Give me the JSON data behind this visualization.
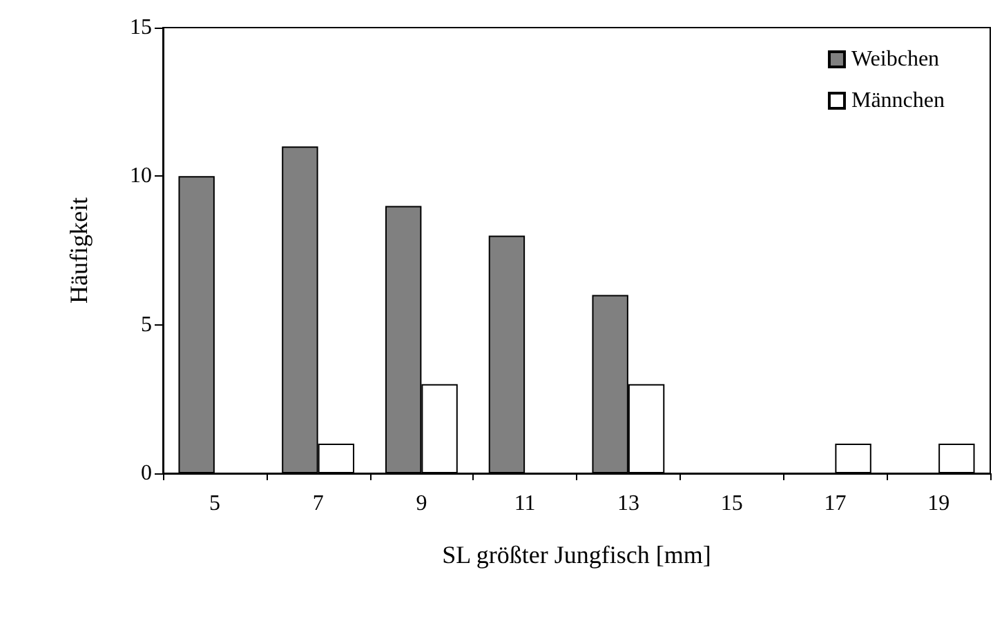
{
  "chart_data": {
    "type": "bar",
    "xlabel": "SL größter Jungfisch [mm]",
    "ylabel": "Häufigkeit",
    "categories": [
      "5",
      "7",
      "9",
      "11",
      "13",
      "15",
      "17",
      "19"
    ],
    "series": [
      {
        "name": "Weibchen",
        "color": "#808080",
        "values": [
          10,
          11,
          9,
          8,
          6,
          0,
          0,
          0
        ]
      },
      {
        "name": "Männchen",
        "color": "#ffffff",
        "values": [
          0,
          1,
          3,
          0,
          3,
          0,
          1,
          1
        ]
      }
    ],
    "ylim": [
      0,
      15
    ],
    "yticks": [
      0,
      5,
      10,
      15
    ],
    "grid": false,
    "legend": "top right"
  }
}
